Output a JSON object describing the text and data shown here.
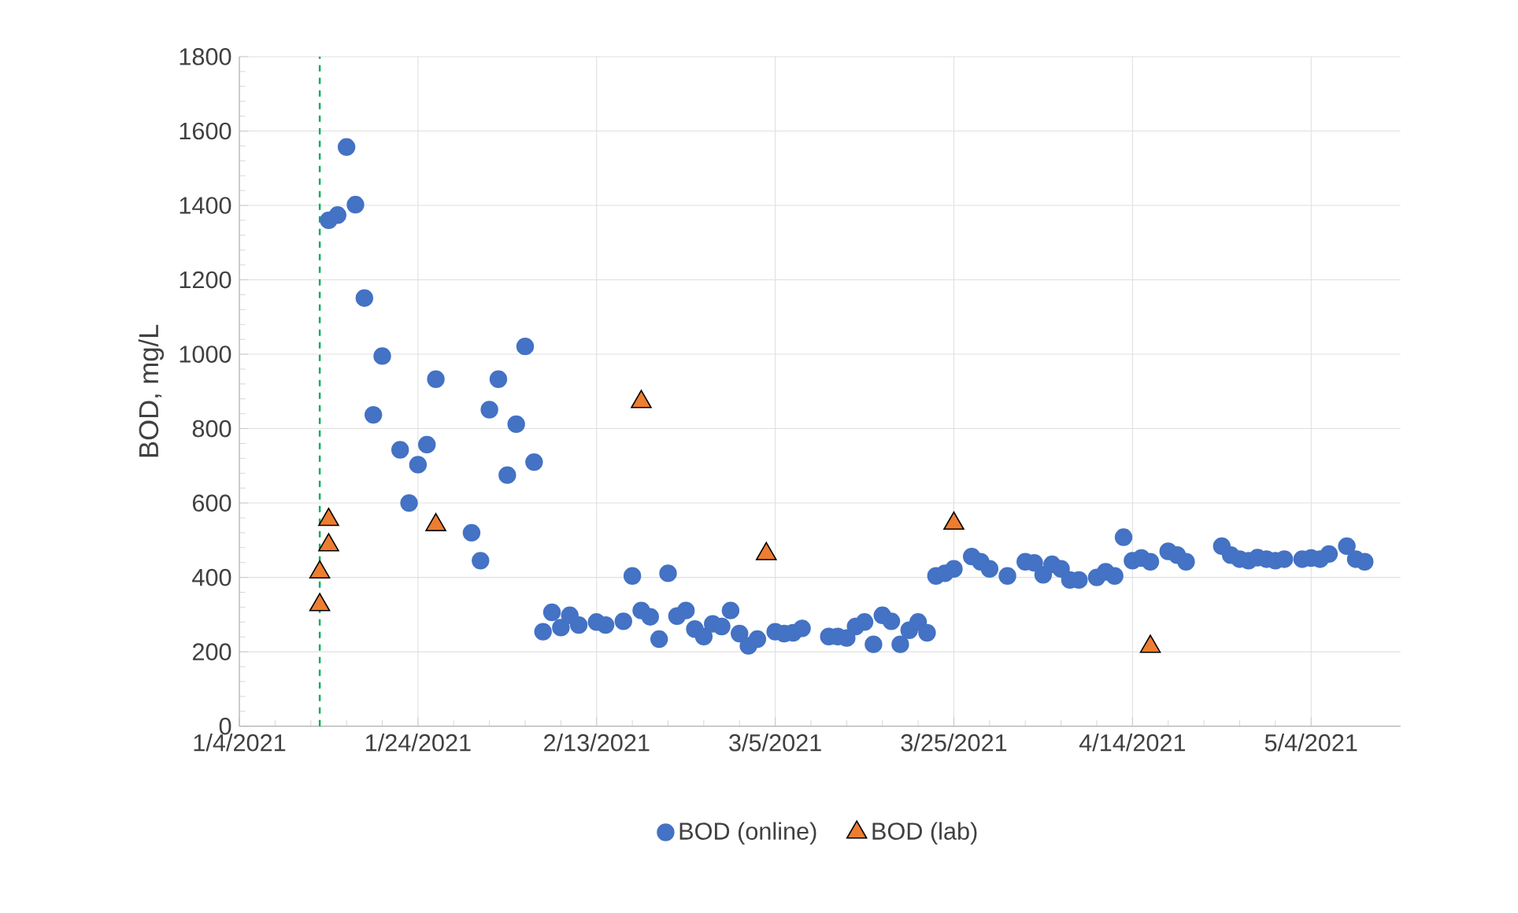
{
  "chart_data": {
    "type": "scatter",
    "x": [
      "2021-01-14",
      "2021-01-15",
      "2021-01-16",
      "2021-01-17",
      "2021-01-18",
      "2021-01-19",
      "2021-01-20",
      "2021-01-22",
      "2021-01-23",
      "2021-01-24",
      "2021-01-25",
      "2021-01-26",
      "2021-01-30",
      "2021-01-31",
      "2021-02-01",
      "2021-02-02",
      "2021-02-03",
      "2021-02-04",
      "2021-02-05",
      "2021-02-06",
      "2021-02-07",
      "2021-02-08",
      "2021-02-09",
      "2021-02-10",
      "2021-02-11",
      "2021-02-13",
      "2021-02-14",
      "2021-02-16",
      "2021-02-17",
      "2021-02-18",
      "2021-02-19",
      "2021-02-20",
      "2021-02-21",
      "2021-02-22",
      "2021-02-23",
      "2021-02-24",
      "2021-02-25",
      "2021-02-26",
      "2021-02-27",
      "2021-02-28",
      "2021-03-01",
      "2021-03-02",
      "2021-03-03",
      "2021-03-05",
      "2021-03-06",
      "2021-03-07",
      "2021-03-08",
      "2021-03-11",
      "2021-03-12",
      "2021-03-13",
      "2021-03-14",
      "2021-03-15",
      "2021-03-16",
      "2021-03-17",
      "2021-03-18",
      "2021-03-19",
      "2021-03-20",
      "2021-03-21",
      "2021-03-22",
      "2021-03-23",
      "2021-03-24",
      "2021-03-25",
      "2021-03-27",
      "2021-03-28",
      "2021-03-29",
      "2021-03-31",
      "2021-04-02",
      "2021-04-03",
      "2021-04-04",
      "2021-04-05",
      "2021-04-06",
      "2021-04-07",
      "2021-04-08",
      "2021-04-10",
      "2021-04-11",
      "2021-04-12",
      "2021-04-13",
      "2021-04-14",
      "2021-04-15",
      "2021-04-16",
      "2021-04-18",
      "2021-04-19",
      "2021-04-20",
      "2021-04-24",
      "2021-04-25",
      "2021-04-26",
      "2021-04-27",
      "2021-04-28",
      "2021-04-29",
      "2021-04-30",
      "2021-05-01",
      "2021-05-03",
      "2021-05-04",
      "2021-05-05",
      "2021-05-06",
      "2021-05-08",
      "2021-05-09",
      "2021-05-10"
    ],
    "series": [
      {
        "name": "BOD (online)",
        "color": "#4472c4",
        "marker": "circle",
        "values": [
          1360,
          1374,
          1557,
          1402,
          1151,
          837,
          995,
          743,
          600,
          703,
          757,
          933,
          520,
          445,
          851,
          933,
          675,
          812,
          1021,
          710,
          254,
          306,
          265,
          298,
          272,
          280,
          272,
          282,
          404,
          311,
          294,
          234,
          411,
          296,
          311,
          261,
          241,
          275,
          268,
          311,
          249,
          216,
          234,
          254,
          249,
          251,
          263,
          241,
          241,
          237,
          268,
          280,
          220,
          298,
          282,
          220,
          258,
          280,
          251,
          404,
          411,
          423,
          456,
          442,
          423,
          404,
          442,
          439,
          407,
          435,
          423,
          393,
          393,
          400,
          415,
          404,
          508,
          445,
          452,
          442,
          470,
          460,
          442,
          484,
          460,
          449,
          445,
          453,
          449,
          445,
          449,
          449,
          452,
          449,
          463,
          484,
          449,
          442
        ]
      },
      {
        "name": "BOD (lab)",
        "color": "#ed7d31",
        "marker": "triangle",
        "x": [
          "2021-01-13",
          "2021-01-13",
          "2021-01-14",
          "2021-01-14",
          "2021-01-26",
          "2021-02-18",
          "2021-03-04",
          "2021-03-25",
          "2021-04-16"
        ],
        "values": [
          326,
          414,
          487,
          555,
          541,
          872,
          463,
          545,
          214
        ]
      }
    ],
    "ylabel": "BOD, mg/L",
    "xlim": [
      "2021-01-04",
      "2021-05-14"
    ],
    "xticks": [
      {
        "value": "2021-01-04",
        "label": "1/4/2021"
      },
      {
        "value": "2021-01-24",
        "label": "1/24/2021"
      },
      {
        "value": "2021-02-13",
        "label": "2/13/2021"
      },
      {
        "value": "2021-03-05",
        "label": "3/5/2021"
      },
      {
        "value": "2021-03-25",
        "label": "3/25/2021"
      },
      {
        "value": "2021-04-14",
        "label": "4/14/2021"
      },
      {
        "value": "2021-05-04",
        "label": "5/4/2021"
      }
    ],
    "ylim": [
      0,
      1800
    ],
    "yticks": [
      0,
      200,
      400,
      600,
      800,
      1000,
      1200,
      1400,
      1600,
      1800
    ],
    "ref_lines": [
      {
        "axis": "x",
        "value": "2021-01-13",
        "color": "#00b050",
        "line_style": "dashed"
      }
    ],
    "grid": true,
    "legend": "bottom"
  }
}
